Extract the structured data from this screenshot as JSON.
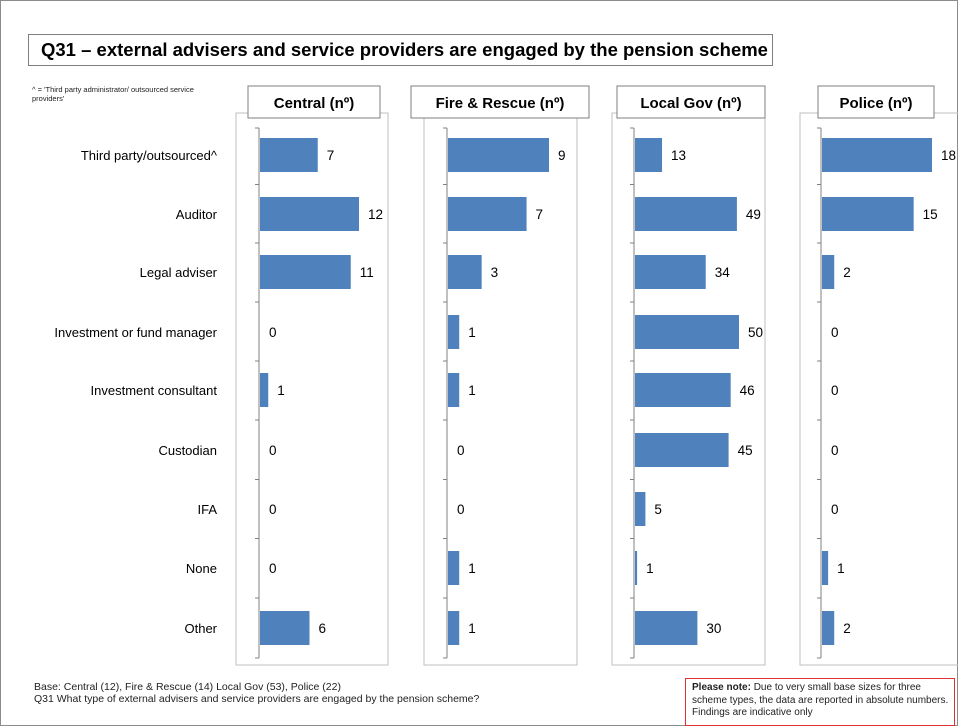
{
  "title": "Q31 – external advisers and service providers are engaged by the pension scheme",
  "footnote": "^ = 'Third party administrator/ outsourced service providers'",
  "base_text": "Base: Central (12), Fire & Rescue (14) Local Gov (53), Police (22)",
  "question_text": "Q31 What type of external advisers and service providers are engaged by the pension scheme?",
  "note": {
    "bold": "Please note:",
    "text": " Due to very small base sizes for three scheme types, the data are reported in absolute numbers. Findings are indicative only"
  },
  "colors": {
    "bar": "#4f81bd",
    "panel_border": "#bfbfbf",
    "note_border": "#e03030"
  },
  "chart_data": {
    "type": "bar",
    "orientation": "horizontal",
    "categories": [
      "Third party/outsourced^",
      "Auditor",
      "Legal adviser",
      "Investment or fund manager",
      "Investment consultant",
      "Custodian",
      "IFA",
      "None",
      "Other"
    ],
    "series": [
      {
        "name": "Central (nº)",
        "values": [
          7,
          12,
          11,
          0,
          1,
          0,
          0,
          0,
          6
        ]
      },
      {
        "name": "Fire & Rescue (nº)",
        "values": [
          9,
          7,
          3,
          1,
          1,
          0,
          0,
          1,
          1
        ]
      },
      {
        "name": "Local Gov (nº)",
        "values": [
          13,
          49,
          34,
          50,
          46,
          45,
          5,
          1,
          30
        ]
      },
      {
        "name": "Police (nº)",
        "values": [
          18,
          15,
          2,
          0,
          0,
          0,
          0,
          1,
          2
        ]
      }
    ],
    "xlim": [
      [
        0,
        12
      ],
      [
        0,
        9
      ],
      [
        0,
        50
      ],
      [
        0,
        18
      ]
    ],
    "grid": false
  }
}
